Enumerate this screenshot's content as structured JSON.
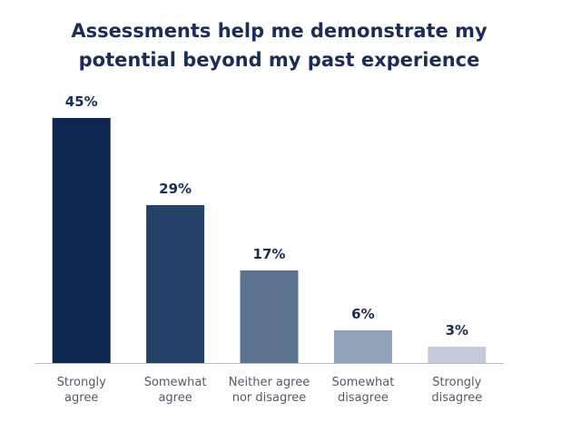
{
  "title_lines": [
    "Assessments help me demonstrate my",
    "potential beyond my past experience"
  ],
  "chart_data": {
    "type": "bar",
    "title": "Assessments help me demonstrate my potential beyond my past experience",
    "categories": [
      "Strongly agree",
      "Somewhat agree",
      "Neither agree nor disagree",
      "Somewhat disagree",
      "Strongly disagree"
    ],
    "category_label_lines": [
      [
        "Strongly",
        "agree"
      ],
      [
        "Somewhat",
        "agree"
      ],
      [
        "Neither agree",
        "nor disagree"
      ],
      [
        "Somewhat",
        "disagree"
      ],
      [
        "Strongly",
        "disagree"
      ]
    ],
    "values": [
      45,
      29,
      17,
      6,
      3
    ],
    "value_labels": [
      "45%",
      "29%",
      "17%",
      "6%",
      "3%"
    ],
    "bar_colors": [
      "#0e2650",
      "#274268",
      "#5a7190",
      "#8fa2b7",
      "#c3cbd8"
    ],
    "ylim": [
      0,
      45
    ],
    "grid": false,
    "xlabel": "",
    "ylabel": ""
  }
}
